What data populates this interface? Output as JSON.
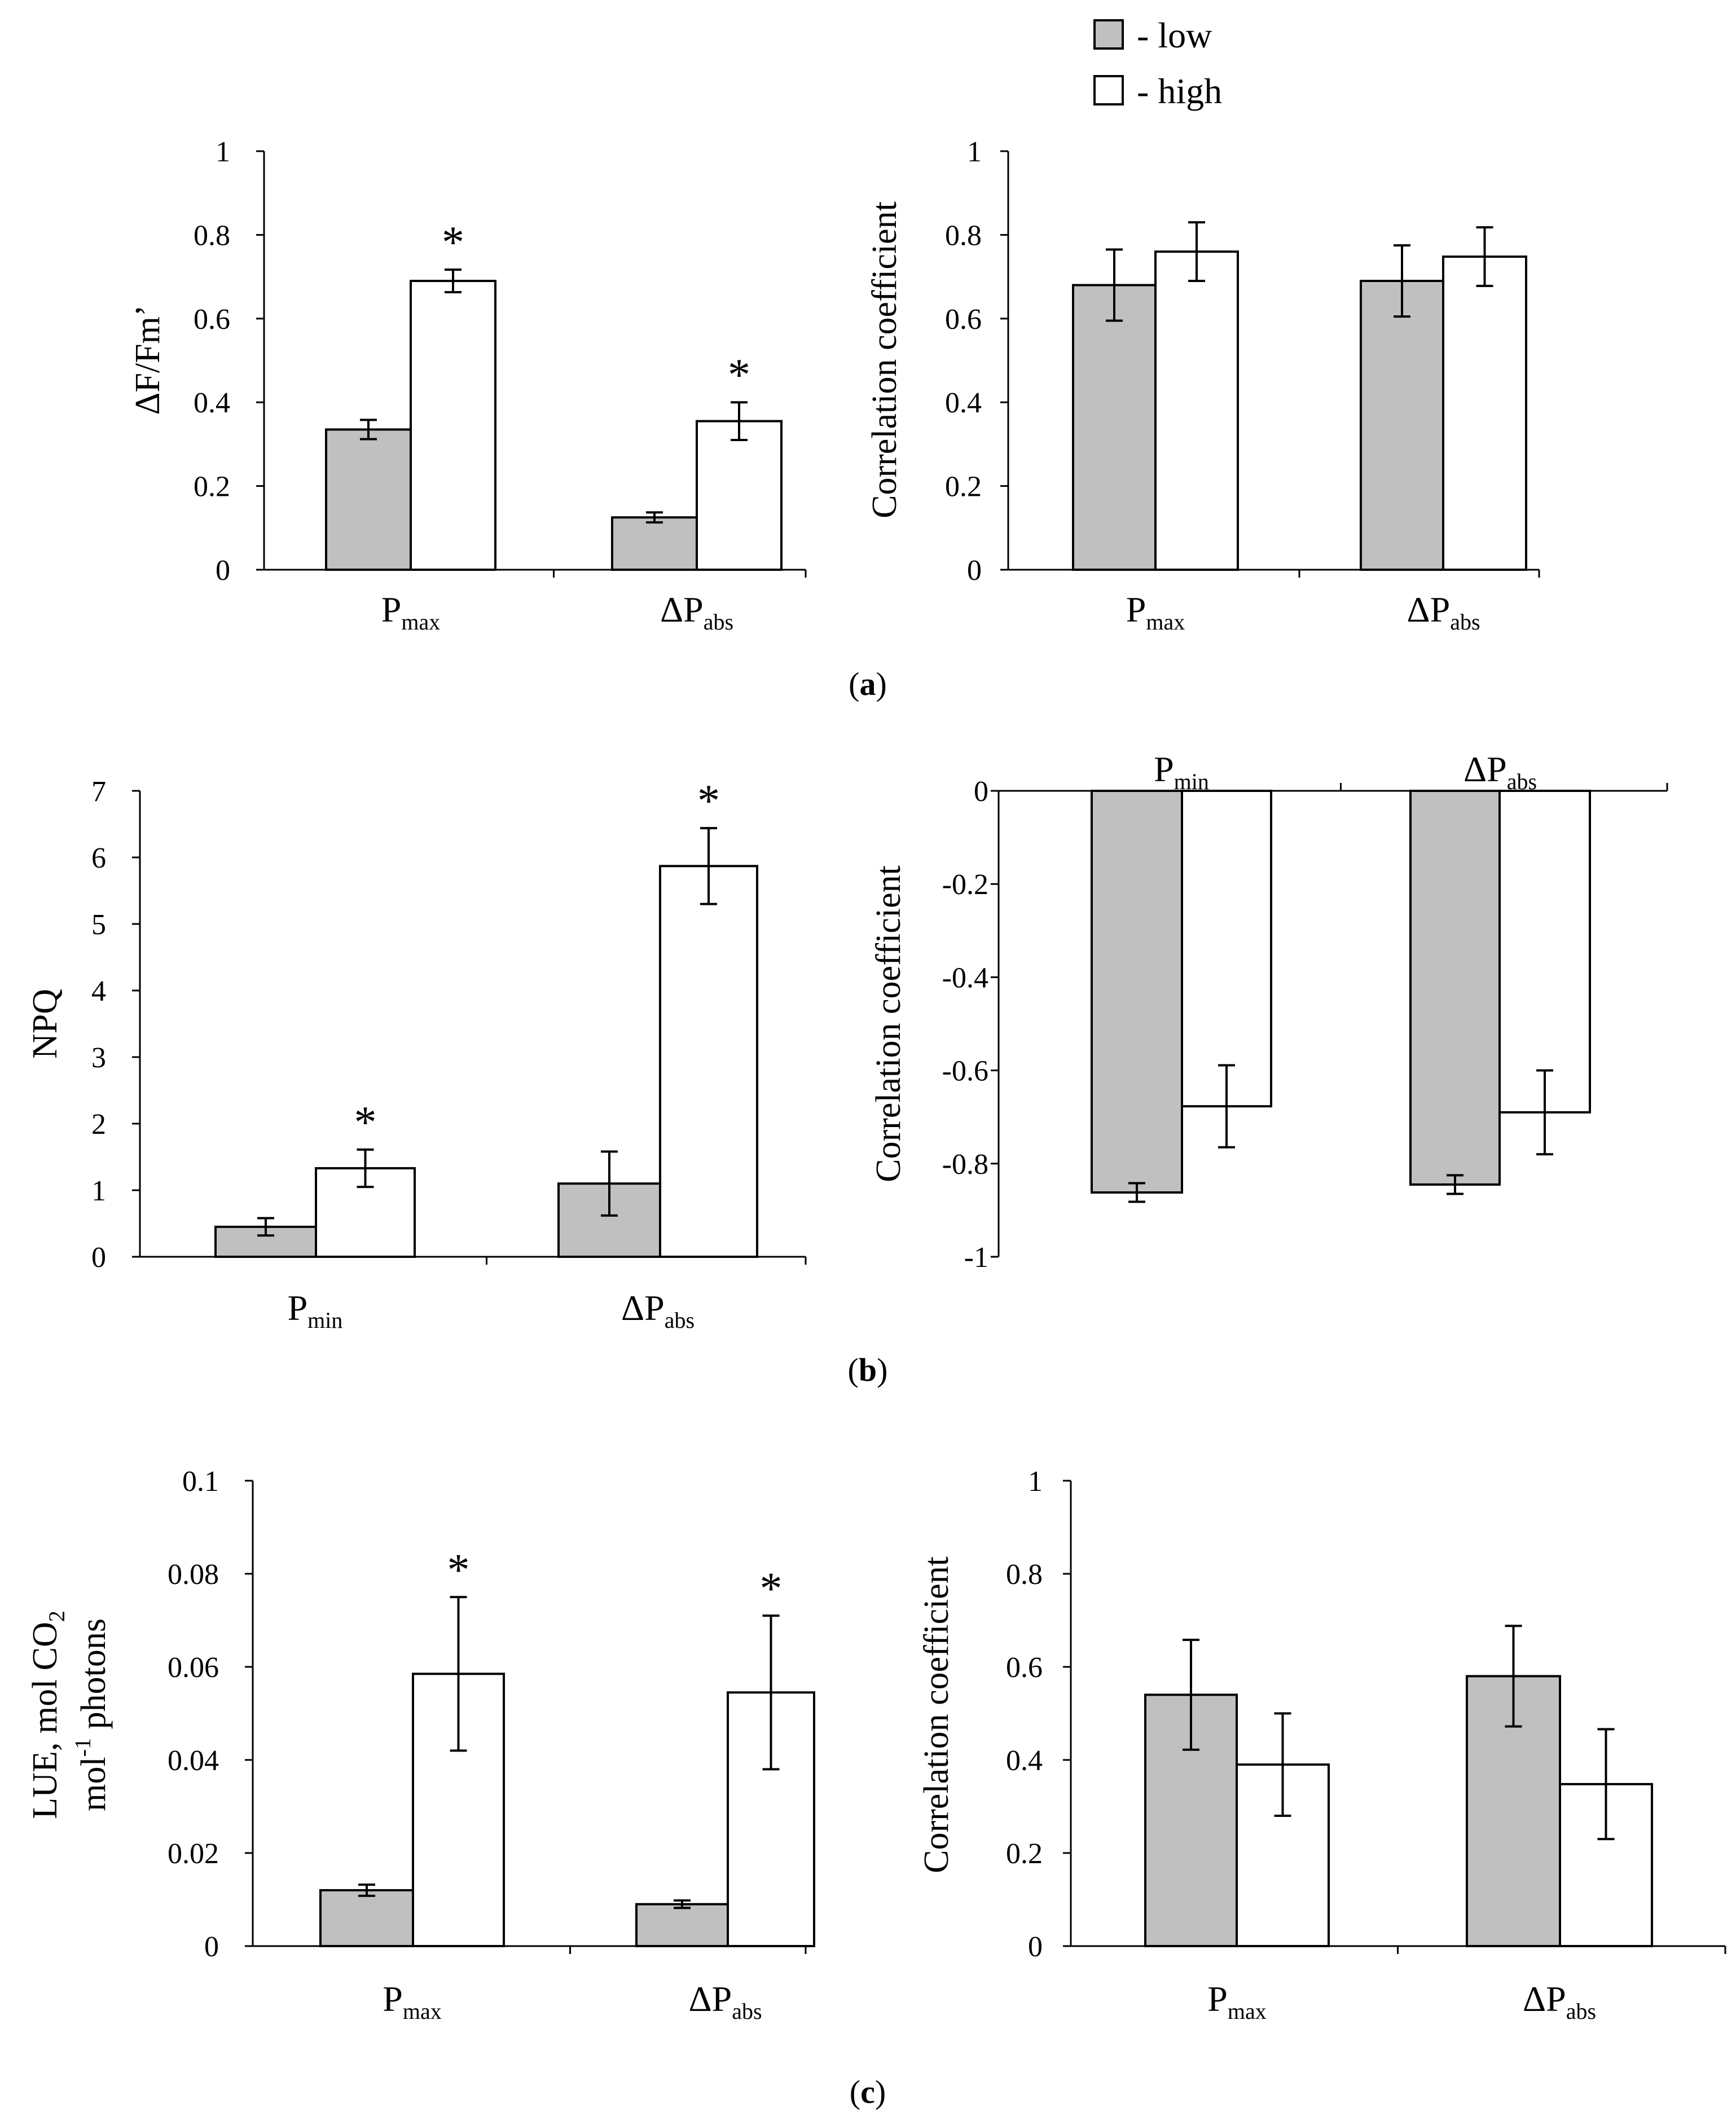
{
  "legend": {
    "items": [
      {
        "label": "- low",
        "fill": "#c0c0c0"
      },
      {
        "label": "- high",
        "fill": "#ffffff"
      }
    ]
  },
  "chart_data": [
    {
      "id": "a-left",
      "panel": "(a)",
      "type": "bar",
      "ylabel": "ΔF/Fm’",
      "ylim": [
        0,
        1
      ],
      "yticks": [
        "0",
        "0.2",
        "0.4",
        "0.6",
        "0.8",
        "1"
      ],
      "categories": [
        {
          "main": "P",
          "sub": "max"
        },
        {
          "main": "ΔP",
          "sub": "abs"
        }
      ],
      "series": [
        {
          "name": "low",
          "values": [
            0.335,
            0.125
          ],
          "errors": [
            0.023,
            0.012
          ],
          "sig": [
            "",
            ""
          ]
        },
        {
          "name": "high",
          "values": [
            0.69,
            0.355
          ],
          "errors": [
            0.027,
            0.045
          ],
          "sig": [
            "*",
            "*"
          ]
        }
      ]
    },
    {
      "id": "a-right",
      "panel": "(a)",
      "type": "bar",
      "ylabel": "Correlation coefficient",
      "ylim": [
        0,
        1
      ],
      "yticks": [
        "0",
        "0.2",
        "0.4",
        "0.6",
        "0.8",
        "1"
      ],
      "categories": [
        {
          "main": "P",
          "sub": "max"
        },
        {
          "main": "ΔP",
          "sub": "abs"
        }
      ],
      "series": [
        {
          "name": "low",
          "values": [
            0.68,
            0.69
          ],
          "errors": [
            0.085,
            0.085
          ],
          "sig": [
            "",
            ""
          ]
        },
        {
          "name": "high",
          "values": [
            0.76,
            0.748
          ],
          "errors": [
            0.07,
            0.07
          ],
          "sig": [
            "",
            ""
          ]
        }
      ]
    },
    {
      "id": "b-left",
      "panel": "(b)",
      "type": "bar",
      "ylabel": "NPQ",
      "ylim": [
        0,
        7
      ],
      "yticks": [
        "0",
        "1",
        "2",
        "3",
        "4",
        "5",
        "6",
        "7"
      ],
      "categories": [
        {
          "main": "P",
          "sub": "min"
        },
        {
          "main": "ΔP",
          "sub": "abs"
        }
      ],
      "series": [
        {
          "name": "low",
          "values": [
            0.45,
            1.1
          ],
          "errors": [
            0.13,
            0.48
          ],
          "sig": [
            "",
            ""
          ]
        },
        {
          "name": "high",
          "values": [
            1.33,
            5.87
          ],
          "errors": [
            0.28,
            0.57
          ],
          "sig": [
            "*",
            "*"
          ]
        }
      ]
    },
    {
      "id": "b-right",
      "panel": "(b)",
      "type": "bar",
      "ylabel": "Correlation coefficient",
      "ylim": [
        -1,
        0
      ],
      "yticks": [
        "-1",
        "-0.8",
        "-0.6",
        "-0.4",
        "-0.2",
        "0"
      ],
      "categories": [
        {
          "main": "P",
          "sub": "min"
        },
        {
          "main": "ΔP",
          "sub": "abs"
        }
      ],
      "series": [
        {
          "name": "low",
          "values": [
            -0.862,
            -0.845
          ],
          "errors": [
            0.02,
            0.02
          ],
          "sig": [
            "",
            ""
          ]
        },
        {
          "name": "high",
          "values": [
            -0.677,
            -0.69
          ],
          "errors": [
            0.088,
            0.09
          ],
          "sig": [
            "",
            ""
          ]
        }
      ]
    },
    {
      "id": "c-left",
      "panel": "(c)",
      "type": "bar",
      "ylabel": "LUE, mol CO₂ mol⁻¹ photons",
      "ylabel_lines": [
        [
          "LUE, mol CO",
          "2"
        ],
        [
          "mol",
          "-1",
          " photons"
        ]
      ],
      "ylim": [
        0,
        0.1
      ],
      "yticks": [
        "0",
        "0.02",
        "0.04",
        "0.06",
        "0.08",
        "0.1"
      ],
      "categories": [
        {
          "main": "P",
          "sub": "max"
        },
        {
          "main": "ΔP",
          "sub": "abs"
        }
      ],
      "series": [
        {
          "name": "low",
          "values": [
            0.012,
            0.009
          ],
          "errors": [
            0.0012,
            0.0008
          ],
          "sig": [
            "",
            ""
          ]
        },
        {
          "name": "high",
          "values": [
            0.0585,
            0.0545
          ],
          "errors": [
            0.0165,
            0.0165
          ],
          "sig": [
            "*",
            "*"
          ]
        }
      ]
    },
    {
      "id": "c-right",
      "panel": "(c)",
      "type": "bar",
      "ylabel": "Correlation coefficient",
      "ylim": [
        0,
        1
      ],
      "yticks": [
        "0",
        "0.2",
        "0.4",
        "0.6",
        "0.8",
        "1"
      ],
      "categories": [
        {
          "main": "P",
          "sub": "max"
        },
        {
          "main": "ΔP",
          "sub": "abs"
        }
      ],
      "series": [
        {
          "name": "low",
          "values": [
            0.54,
            0.58
          ],
          "errors": [
            0.118,
            0.108
          ],
          "sig": [
            "",
            ""
          ]
        },
        {
          "name": "high",
          "values": [
            0.39,
            0.348
          ],
          "errors": [
            0.11,
            0.118
          ],
          "sig": [
            "",
            ""
          ]
        }
      ]
    }
  ],
  "panel_labels": [
    {
      "open": "(",
      "letter": "a",
      "close": ")"
    },
    {
      "open": "(",
      "letter": "b",
      "close": ")"
    },
    {
      "open": "(",
      "letter": "c",
      "close": ")"
    }
  ]
}
